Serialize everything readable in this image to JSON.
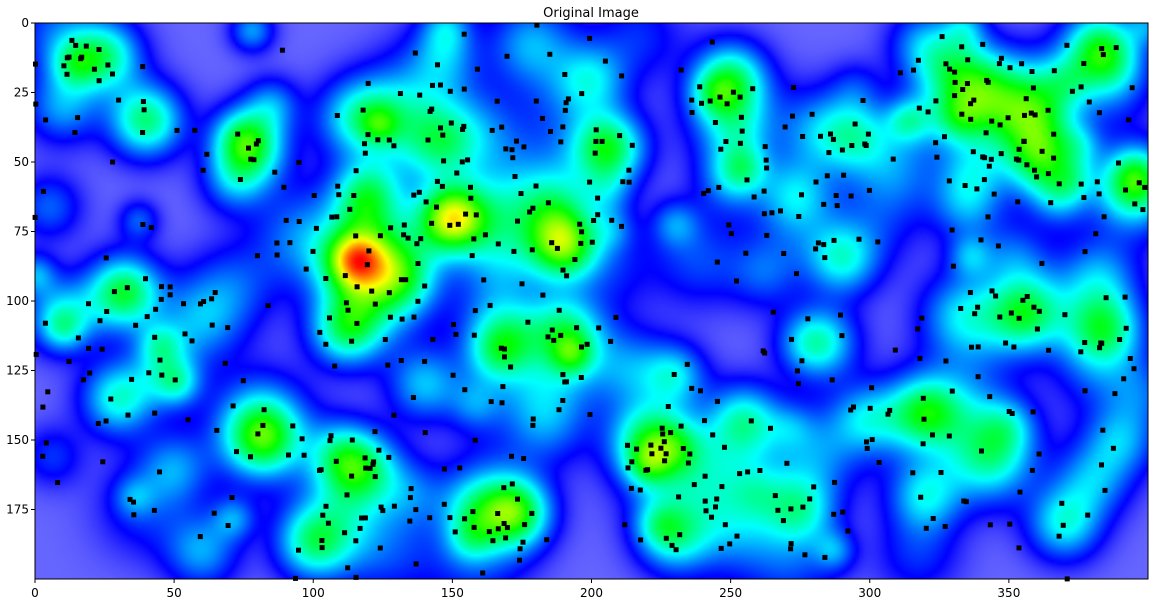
{
  "chart_data": {
    "type": "heatmap",
    "title": "Original Image",
    "xlabel": "",
    "ylabel": "",
    "xlim": [
      0,
      400
    ],
    "ylim": [
      200,
      0
    ],
    "x_ticks": [
      0,
      50,
      100,
      150,
      200,
      250,
      300,
      350
    ],
    "y_ticks": [
      0,
      25,
      50,
      75,
      100,
      125,
      150,
      175
    ],
    "colormap": [
      "#ffffff",
      "#0000ff",
      "#00ffff",
      "#00ff00",
      "#ffff00",
      "#ff0000"
    ],
    "hotspots": [
      {
        "x": 190,
        "y": 80,
        "level": 1.0
      },
      {
        "x": 172,
        "y": 176,
        "level": 1.0
      },
      {
        "x": 32,
        "y": 97,
        "level": 0.85
      },
      {
        "x": 206,
        "y": 45,
        "level": 0.85
      },
      {
        "x": 150,
        "y": 70,
        "level": 0.8
      },
      {
        "x": 115,
        "y": 86,
        "level": 0.75
      },
      {
        "x": 40,
        "y": 35,
        "level": 0.75
      },
      {
        "x": 25,
        "y": 12,
        "level": 0.7
      },
      {
        "x": 362,
        "y": 50,
        "level": 0.7
      },
      {
        "x": 382,
        "y": 8,
        "level": 0.65
      },
      {
        "x": 112,
        "y": 110,
        "level": 0.7
      },
      {
        "x": 78,
        "y": 45,
        "level": 0.65
      },
      {
        "x": 250,
        "y": 20,
        "level": 0.65
      },
      {
        "x": 320,
        "y": 140,
        "level": 0.65
      },
      {
        "x": 255,
        "y": 143,
        "level": 0.6
      },
      {
        "x": 100,
        "y": 187,
        "level": 0.6
      },
      {
        "x": 30,
        "y": 135,
        "level": 0.6
      },
      {
        "x": 82,
        "y": 150,
        "level": 0.55
      },
      {
        "x": 290,
        "y": 85,
        "level": 0.55
      },
      {
        "x": 355,
        "y": 105,
        "level": 0.55
      },
      {
        "x": 370,
        "y": 180,
        "level": 0.55
      },
      {
        "x": 320,
        "y": 170,
        "level": 0.5
      },
      {
        "x": 275,
        "y": 175,
        "level": 0.55
      },
      {
        "x": 230,
        "y": 185,
        "level": 0.5
      },
      {
        "x": 283,
        "y": 115,
        "level": 0.5
      },
      {
        "x": 10,
        "y": 105,
        "level": 0.5
      },
      {
        "x": 395,
        "y": 60,
        "level": 0.5
      },
      {
        "x": 295,
        "y": 40,
        "level": 0.45
      },
      {
        "x": 220,
        "y": 150,
        "level": 0.45
      },
      {
        "x": 140,
        "y": 130,
        "level": 0.45
      },
      {
        "x": 190,
        "y": 110,
        "level": 0.45
      },
      {
        "x": 120,
        "y": 160,
        "level": 0.45
      },
      {
        "x": 60,
        "y": 190,
        "level": 0.4
      },
      {
        "x": 200,
        "y": 20,
        "level": 0.45
      },
      {
        "x": 10,
        "y": 30,
        "level": 0.4
      },
      {
        "x": 385,
        "y": 110,
        "level": 0.45
      },
      {
        "x": 120,
        "y": 60,
        "level": 0.45
      },
      {
        "x": 50,
        "y": 160,
        "level": 0.35
      },
      {
        "x": 335,
        "y": 65,
        "level": 0.4
      },
      {
        "x": 390,
        "y": 150,
        "level": 0.4
      }
    ],
    "markers_count": 720,
    "marker_color": "#000000"
  }
}
